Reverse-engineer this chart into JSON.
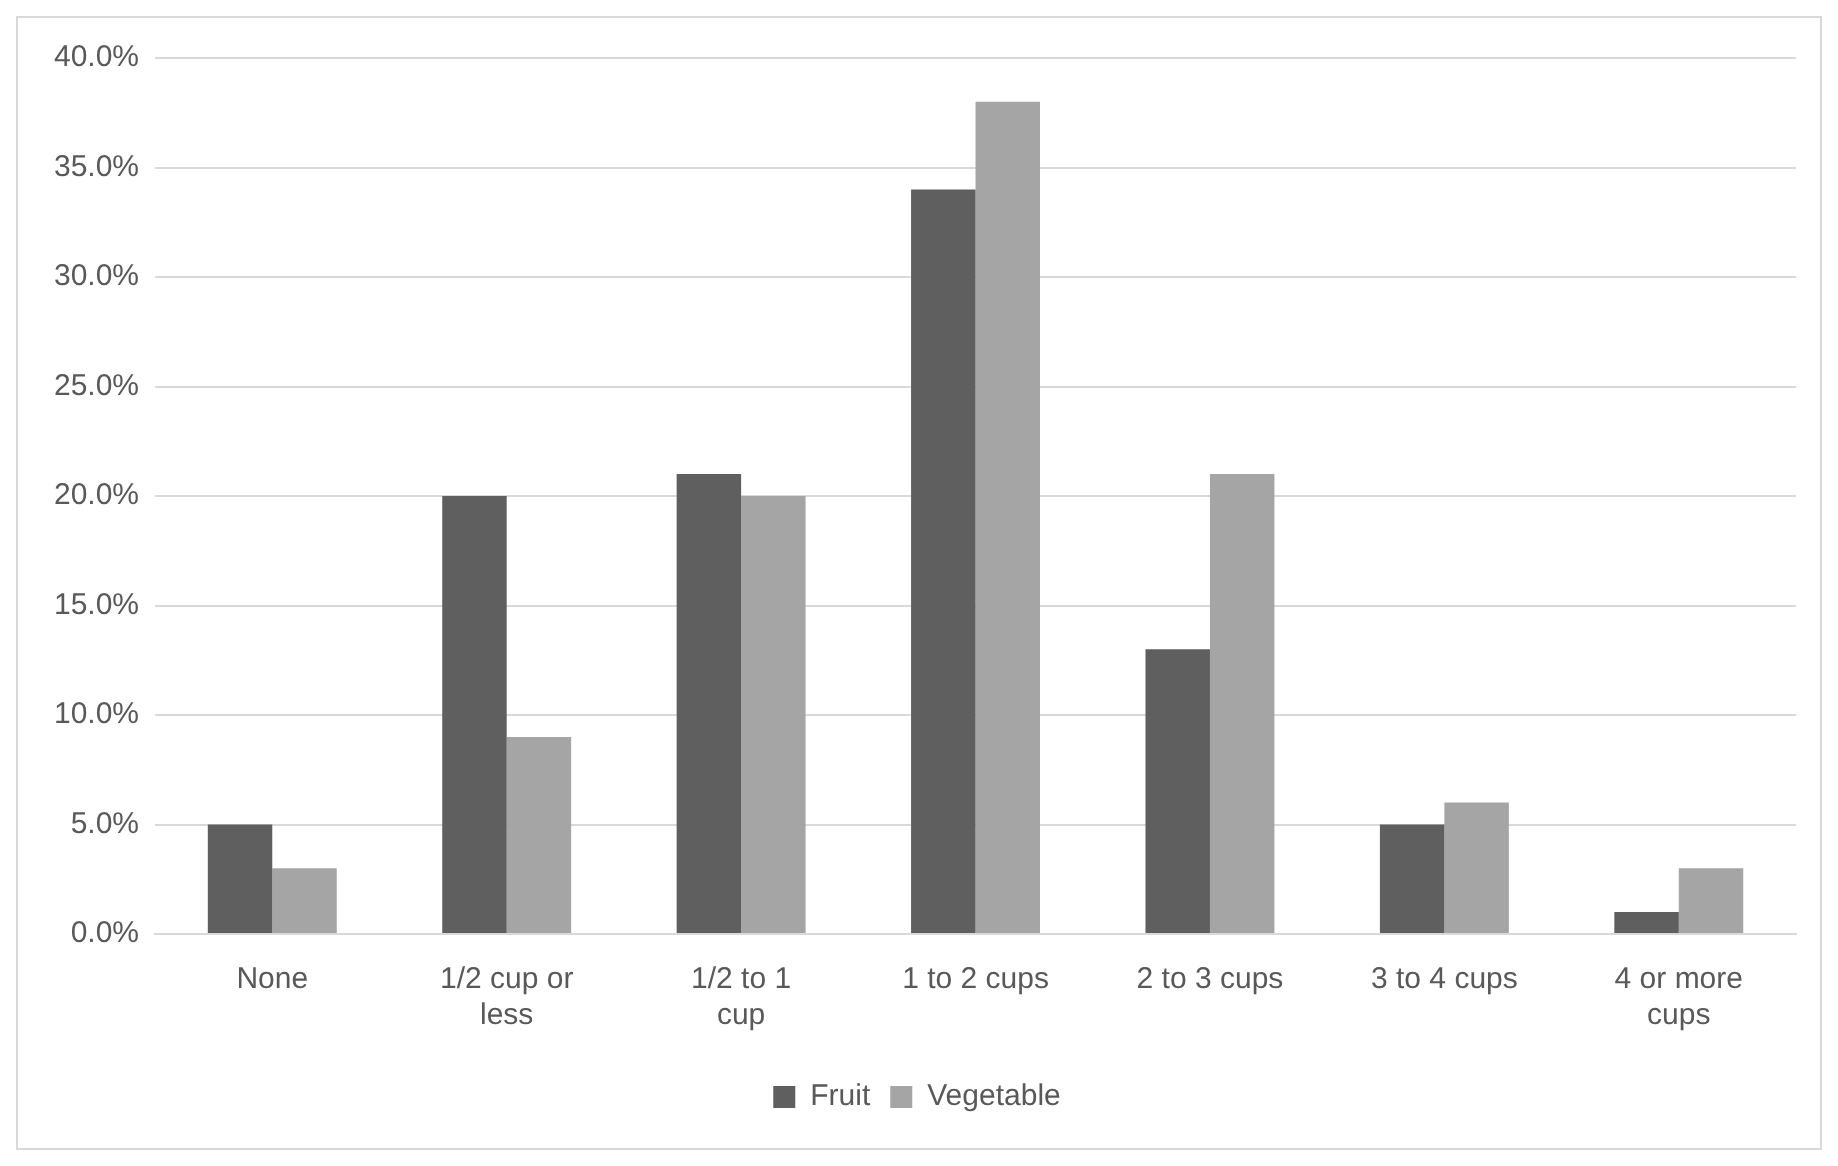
{
  "chart_data": {
    "type": "bar",
    "categories": [
      "None",
      "1/2 cup or less",
      "1/2 to 1 cup",
      "1 to 2 cups",
      "2 to 3 cups",
      "3 to 4 cups",
      "4 or more cups"
    ],
    "series": [
      {
        "name": "Fruit",
        "color": "#5f5f5f",
        "values": [
          5,
          20,
          21,
          34,
          13,
          5,
          1
        ]
      },
      {
        "name": "Vegetable",
        "color": "#a5a5a5",
        "values": [
          3,
          9,
          20,
          38,
          21,
          6,
          3
        ]
      }
    ],
    "ylim": [
      0,
      40
    ],
    "yticks": [
      {
        "value": 0,
        "label": "0.0%"
      },
      {
        "value": 5,
        "label": "5.0%"
      },
      {
        "value": 10,
        "label": "10.0%"
      },
      {
        "value": 15,
        "label": "15.0%"
      },
      {
        "value": 20,
        "label": "20.0%"
      },
      {
        "value": 25,
        "label": "25.0%"
      },
      {
        "value": 30,
        "label": "30.0%"
      },
      {
        "value": 35,
        "label": "35.0%"
      },
      {
        "value": 40,
        "label": "40.0%"
      }
    ],
    "grid": "y",
    "legend": "bottom"
  }
}
